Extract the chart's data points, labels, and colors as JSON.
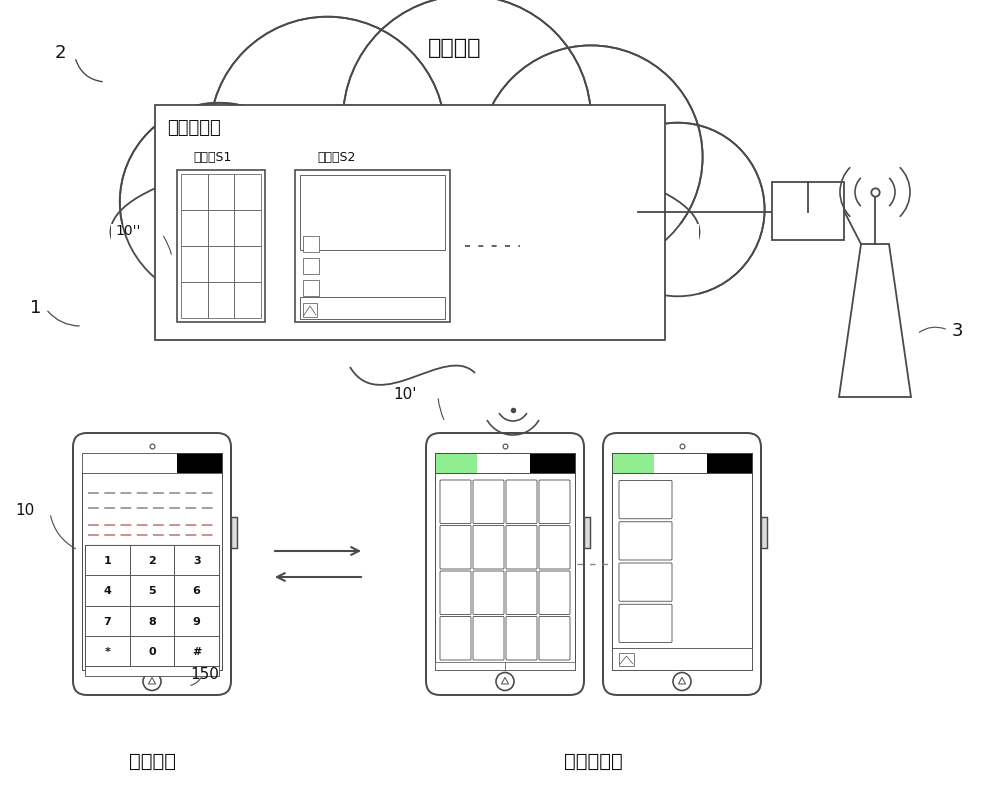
{
  "title": "云服务器",
  "cloud_label": "2",
  "cloud_system_group_label": "云端系统组",
  "cloud_s1_label": "云系统S1",
  "cloud_s2_label": "云系统S2",
  "cloud_device_label": "10''",
  "phone1_label": "1",
  "phone1_mode_label": "基础模式",
  "phone1_keypad": [
    "1",
    "2",
    "3",
    "4",
    "5",
    "6",
    "7",
    "8",
    "9",
    "*",
    "0",
    "#"
  ],
  "phone_cloud_label": "10'",
  "phone_cloud_mode_label": "云计算模式",
  "phone_keypad_label": "10",
  "phone_bottom_label": "150",
  "antenna_label": "3",
  "bg_color": "#ffffff",
  "line_color": "#4a4a4a",
  "text_color": "#111111"
}
